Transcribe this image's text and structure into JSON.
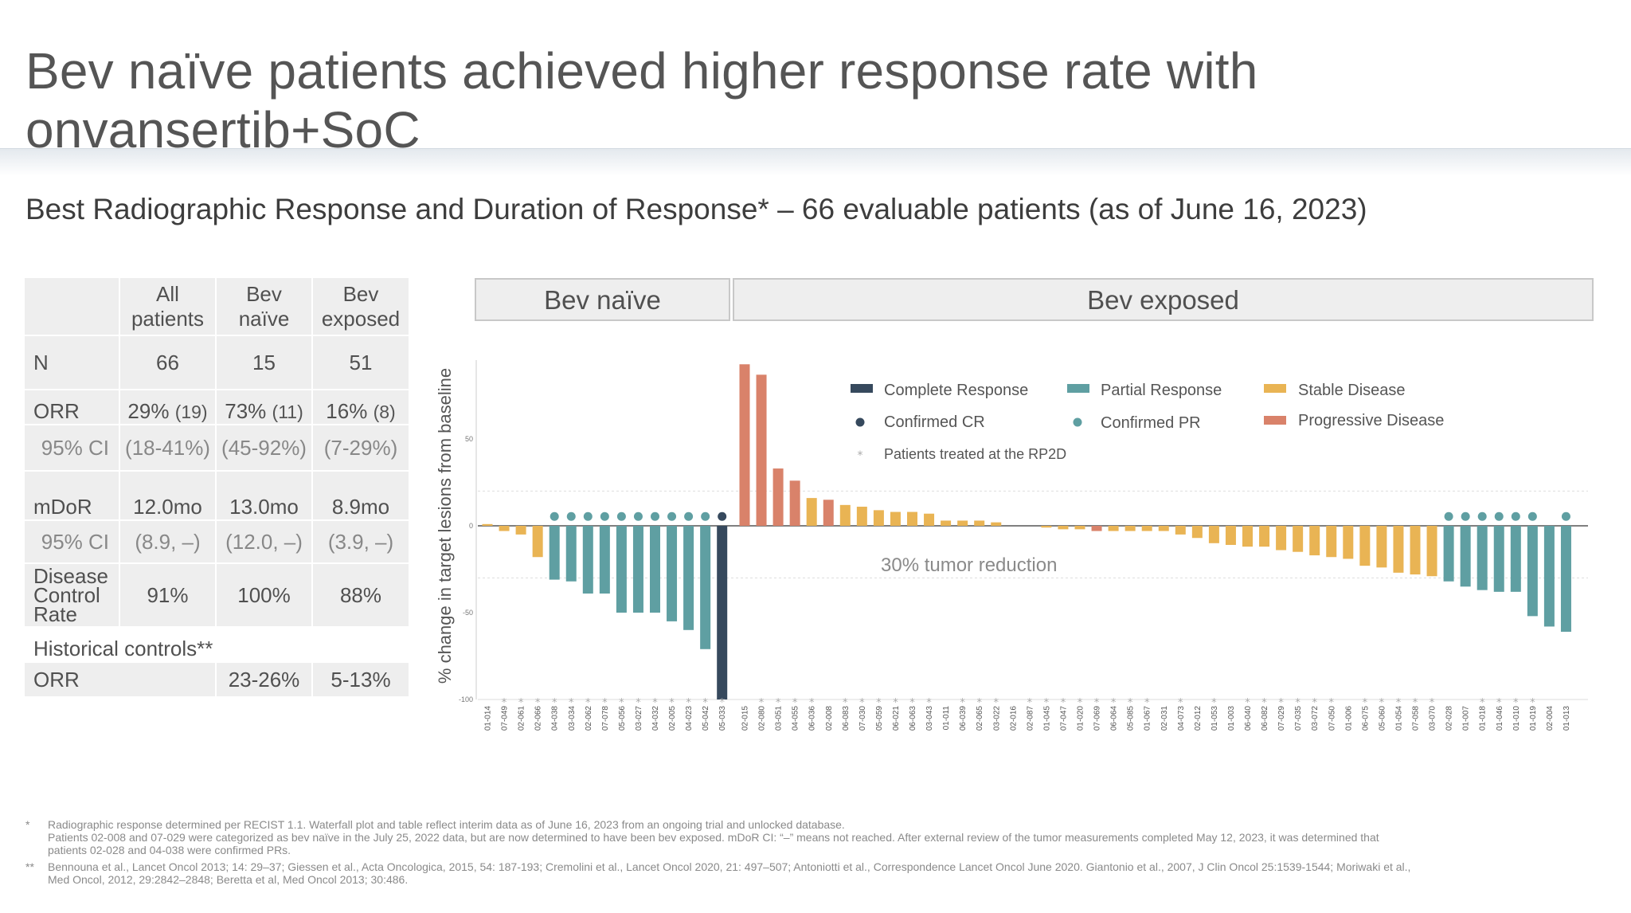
{
  "title": "Bev naïve patients achieved higher response rate with onvansertib+SoC",
  "subtitle": "Best Radiographic Response and Duration of Response* – 66 evaluable patients (as of June 16, 2023)",
  "table": {
    "headers": {
      "col1_line1": "All",
      "col1_line2": "patients",
      "col2_line1": "Bev",
      "col2_line2": "naïve",
      "col3_line1": "Bev",
      "col3_line2": "exposed"
    },
    "n": {
      "label": "N",
      "all": "66",
      "naive": "15",
      "exposed": "51"
    },
    "orr": {
      "label": "ORR",
      "all": "29%",
      "all_n": "(19)",
      "naive": "73%",
      "naive_n": "(11)",
      "exposed": "16%",
      "exposed_n": "(8)",
      "ci_label": "95% CI",
      "all_ci": "(18-41%)",
      "naive_ci": "(45-92%)",
      "exposed_ci": "(7-29%)"
    },
    "mdor": {
      "label": "mDoR",
      "all": "12.0mo",
      "naive": "13.0mo",
      "exposed": "8.9mo",
      "ci_label": "95% CI",
      "all_ci": "(8.9, –)",
      "naive_ci": "(12.0, –)",
      "exposed_ci": "(3.9, –)"
    },
    "dcr": {
      "label_line1": "Disease",
      "label_line2": "Control",
      "label_line3": "Rate",
      "all": "91%",
      "naive": "100%",
      "exposed": "88%"
    },
    "historical": {
      "heading": "Historical controls**",
      "label": "ORR",
      "naive": "23-26%",
      "exposed": "5-13%"
    }
  },
  "chart_data": {
    "type": "bar",
    "group_headers": [
      "Bev naïve",
      "Bev exposed"
    ],
    "ylabel": "% change in target lesions from baseline",
    "yticks": [
      50,
      0,
      -50,
      -100
    ],
    "ylim": [
      -100,
      95
    ],
    "reference_lines": [
      20,
      -30
    ],
    "annotation": "30% tumor reduction",
    "legend": {
      "cr": "Complete  Response",
      "pr": "Partial Response",
      "sd": "Stable Disease",
      "pd": "Progressive Disease",
      "ccr": "Confirmed CR",
      "cpr": "Confirmed PR",
      "rp2d": "Patients treated at the RP2D"
    },
    "colors": {
      "CR": "#36495d",
      "PR": "#5f9fa2",
      "SD": "#e9b454",
      "PD": "#d9826a",
      "dot": "#5f9fa2",
      "cr_dot": "#36495d",
      "star": "#aaaaaa"
    },
    "series": [
      {
        "group": "Bev naïve",
        "patients": [
          {
            "id": "01-014",
            "value": 1,
            "resp": "SD",
            "rp2d": false,
            "dot": ""
          },
          {
            "id": "07-049",
            "value": -3,
            "resp": "SD",
            "rp2d": true,
            "dot": ""
          },
          {
            "id": "02-061",
            "value": -5,
            "resp": "SD",
            "rp2d": true,
            "dot": ""
          },
          {
            "id": "02-066",
            "value": -18,
            "resp": "SD",
            "rp2d": true,
            "dot": ""
          },
          {
            "id": "04-038",
            "value": -31,
            "resp": "PR",
            "rp2d": true,
            "dot": "PR"
          },
          {
            "id": "03-034",
            "value": -32,
            "resp": "PR",
            "rp2d": true,
            "dot": "PR"
          },
          {
            "id": "02-062",
            "value": -39,
            "resp": "PR",
            "rp2d": true,
            "dot": "PR"
          },
          {
            "id": "07-078",
            "value": -39,
            "resp": "PR",
            "rp2d": true,
            "dot": "PR"
          },
          {
            "id": "05-056",
            "value": -50,
            "resp": "PR",
            "rp2d": true,
            "dot": "PR"
          },
          {
            "id": "03-027",
            "value": -50,
            "resp": "PR",
            "rp2d": true,
            "dot": "PR"
          },
          {
            "id": "04-032",
            "value": -50,
            "resp": "PR",
            "rp2d": true,
            "dot": "PR"
          },
          {
            "id": "02-005",
            "value": -55,
            "resp": "PR",
            "rp2d": true,
            "dot": "PR"
          },
          {
            "id": "04-023",
            "value": -60,
            "resp": "PR",
            "rp2d": true,
            "dot": "PR"
          },
          {
            "id": "05-042",
            "value": -71,
            "resp": "PR",
            "rp2d": true,
            "dot": "PR"
          },
          {
            "id": "05-033",
            "value": -100,
            "resp": "CR",
            "rp2d": true,
            "dot": "CR"
          }
        ]
      },
      {
        "group": "Bev exposed",
        "patients": [
          {
            "id": "02-015",
            "value": 93,
            "resp": "PD",
            "rp2d": false,
            "dot": ""
          },
          {
            "id": "02-080",
            "value": 87,
            "resp": "PD",
            "rp2d": true,
            "dot": ""
          },
          {
            "id": "03-051",
            "value": 33,
            "resp": "PD",
            "rp2d": true,
            "dot": ""
          },
          {
            "id": "04-055",
            "value": 26,
            "resp": "PD",
            "rp2d": true,
            "dot": ""
          },
          {
            "id": "06-036",
            "value": 16,
            "resp": "SD",
            "rp2d": true,
            "dot": ""
          },
          {
            "id": "02-008",
            "value": 15,
            "resp": "PD",
            "rp2d": false,
            "dot": ""
          },
          {
            "id": "06-083",
            "value": 12,
            "resp": "SD",
            "rp2d": true,
            "dot": ""
          },
          {
            "id": "07-030",
            "value": 11,
            "resp": "SD",
            "rp2d": true,
            "dot": ""
          },
          {
            "id": "05-059",
            "value": 9,
            "resp": "SD",
            "rp2d": true,
            "dot": ""
          },
          {
            "id": "06-021",
            "value": 8,
            "resp": "SD",
            "rp2d": true,
            "dot": ""
          },
          {
            "id": "06-063",
            "value": 8,
            "resp": "SD",
            "rp2d": true,
            "dot": ""
          },
          {
            "id": "03-043",
            "value": 7,
            "resp": "SD",
            "rp2d": true,
            "dot": ""
          },
          {
            "id": "01-011",
            "value": 3,
            "resp": "SD",
            "rp2d": false,
            "dot": ""
          },
          {
            "id": "06-039",
            "value": 3,
            "resp": "SD",
            "rp2d": true,
            "dot": ""
          },
          {
            "id": "02-065",
            "value": 3,
            "resp": "SD",
            "rp2d": true,
            "dot": ""
          },
          {
            "id": "03-022",
            "value": 2,
            "resp": "SD",
            "rp2d": true,
            "dot": ""
          },
          {
            "id": "02-016",
            "value": 0,
            "resp": "SD",
            "rp2d": false,
            "dot": ""
          },
          {
            "id": "02-087",
            "value": 0,
            "resp": "SD",
            "rp2d": true,
            "dot": ""
          },
          {
            "id": "01-045",
            "value": -1,
            "resp": "SD",
            "rp2d": true,
            "dot": ""
          },
          {
            "id": "07-047",
            "value": -2,
            "resp": "SD",
            "rp2d": true,
            "dot": ""
          },
          {
            "id": "01-020",
            "value": -2,
            "resp": "SD",
            "rp2d": true,
            "dot": ""
          },
          {
            "id": "07-069",
            "value": -3,
            "resp": "PD",
            "rp2d": true,
            "dot": ""
          },
          {
            "id": "06-064",
            "value": -3,
            "resp": "SD",
            "rp2d": true,
            "dot": ""
          },
          {
            "id": "05-085",
            "value": -3,
            "resp": "SD",
            "rp2d": true,
            "dot": ""
          },
          {
            "id": "01-067",
            "value": -3,
            "resp": "SD",
            "rp2d": true,
            "dot": ""
          },
          {
            "id": "02-031",
            "value": -3,
            "resp": "SD",
            "rp2d": false,
            "dot": ""
          },
          {
            "id": "04-073",
            "value": -5,
            "resp": "SD",
            "rp2d": true,
            "dot": ""
          },
          {
            "id": "02-012",
            "value": -7,
            "resp": "SD",
            "rp2d": false,
            "dot": ""
          },
          {
            "id": "01-053",
            "value": -10,
            "resp": "SD",
            "rp2d": true,
            "dot": ""
          },
          {
            "id": "01-003",
            "value": -11,
            "resp": "SD",
            "rp2d": false,
            "dot": ""
          },
          {
            "id": "06-040",
            "value": -12,
            "resp": "SD",
            "rp2d": true,
            "dot": ""
          },
          {
            "id": "06-082",
            "value": -12,
            "resp": "SD",
            "rp2d": true,
            "dot": ""
          },
          {
            "id": "07-029",
            "value": -14,
            "resp": "SD",
            "rp2d": true,
            "dot": ""
          },
          {
            "id": "07-035",
            "value": -15,
            "resp": "SD",
            "rp2d": true,
            "dot": ""
          },
          {
            "id": "03-072",
            "value": -17,
            "resp": "SD",
            "rp2d": true,
            "dot": ""
          },
          {
            "id": "07-050",
            "value": -18,
            "resp": "SD",
            "rp2d": true,
            "dot": ""
          },
          {
            "id": "01-006",
            "value": -19,
            "resp": "SD",
            "rp2d": false,
            "dot": ""
          },
          {
            "id": "06-075",
            "value": -23,
            "resp": "SD",
            "rp2d": true,
            "dot": ""
          },
          {
            "id": "05-060",
            "value": -24,
            "resp": "SD",
            "rp2d": true,
            "dot": ""
          },
          {
            "id": "01-054",
            "value": -27,
            "resp": "SD",
            "rp2d": true,
            "dot": ""
          },
          {
            "id": "07-058",
            "value": -28,
            "resp": "SD",
            "rp2d": true,
            "dot": ""
          },
          {
            "id": "03-070",
            "value": -29,
            "resp": "SD",
            "rp2d": true,
            "dot": ""
          },
          {
            "id": "02-028",
            "value": -32,
            "resp": "PR",
            "rp2d": false,
            "dot": "PR"
          },
          {
            "id": "01-007",
            "value": -35,
            "resp": "PR",
            "rp2d": false,
            "dot": "PR"
          },
          {
            "id": "01-018",
            "value": -37,
            "resp": "PR",
            "rp2d": true,
            "dot": "PR"
          },
          {
            "id": "01-046",
            "value": -38,
            "resp": "PR",
            "rp2d": true,
            "dot": "PR"
          },
          {
            "id": "01-010",
            "value": -38,
            "resp": "PR",
            "rp2d": true,
            "dot": "PR"
          },
          {
            "id": "01-019",
            "value": -52,
            "resp": "PR",
            "rp2d": true,
            "dot": "PR"
          },
          {
            "id": "02-004",
            "value": -58,
            "resp": "PR",
            "rp2d": false,
            "dot": ""
          },
          {
            "id": "01-013",
            "value": -61,
            "resp": "PR",
            "rp2d": false,
            "dot": "PR"
          }
        ]
      }
    ]
  },
  "footnotes": [
    {
      "mark": "*",
      "lines": [
        "Radiographic response determined per RECIST 1.1. Waterfall plot and table reflect interim data as of June 16, 2023 from an ongoing trial and unlocked database.",
        "Patients 02-008 and 07-029 were categorized as bev naïve in the July 25, 2022 data, but are now determined to have been bev exposed. mDoR CI: “–” means not reached. After external review of the tumor measurements completed May 12, 2023, it was determined that",
        "patients 02-028 and 04-038 were confirmed PRs."
      ]
    },
    {
      "mark": "**",
      "lines": [
        "Bennouna et al., Lancet Oncol 2013; 14: 29–37; Giessen et al., Acta Oncologica, 2015, 54: 187-193; Cremolini et al., Lancet Oncol 2020, 21: 497–507; Antoniotti et al., Correspondence Lancet Oncol June 2020. Giantonio et al., 2007, J Clin Oncol 25:1539-1544; Moriwaki et al.,",
        "Med Oncol, 2012, 29:2842–2848; Beretta et al, Med Oncol 2013; 30:486."
      ]
    }
  ]
}
